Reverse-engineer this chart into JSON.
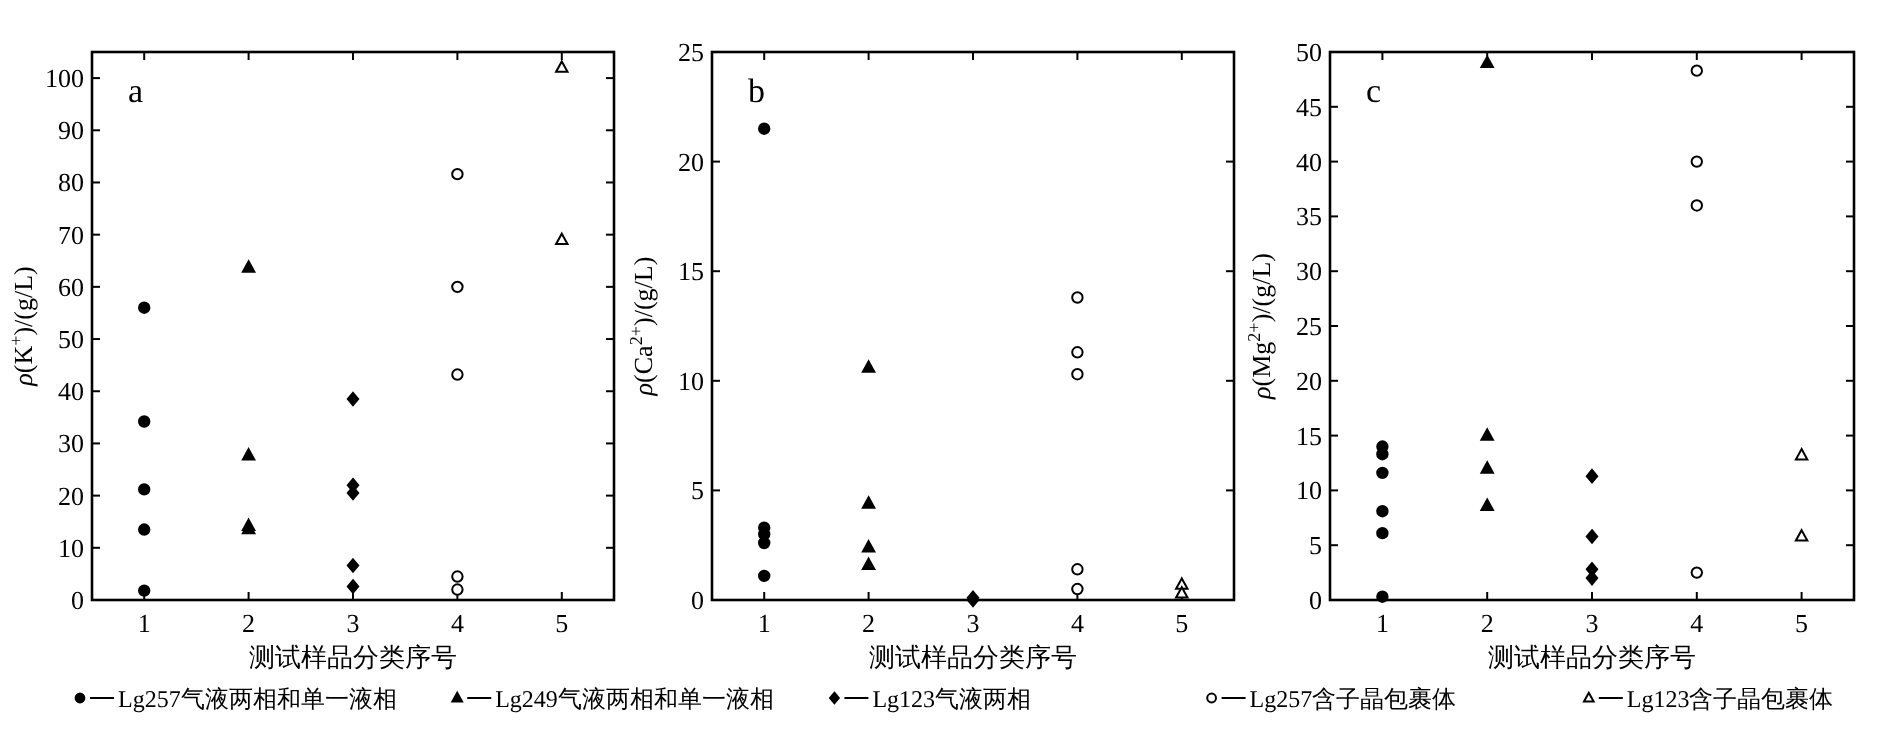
{
  "chart_data": [
    {
      "type": "scatter",
      "xlabel": "测试样品分类序号",
      "ylabel": "*ρ*(K$^{+}$)/(g/L)",
      "annotations": [
        "a"
      ],
      "xlim": [
        0.5,
        5.5
      ],
      "xticks": [
        1,
        2,
        3,
        4,
        5
      ],
      "ylim": [
        0,
        105
      ],
      "yticks": [
        0,
        10,
        20,
        30,
        40,
        50,
        60,
        70,
        80,
        90,
        100
      ],
      "legend": "bottom",
      "series": [
        {
          "name": "Lg257气液两相和单一液相",
          "color": "#000000",
          "marker": "circle",
          "x": [
            1,
            1,
            1,
            1,
            1
          ],
          "values": [
            56,
            34.2,
            21.2,
            13.5,
            1.8
          ]
        },
        {
          "name": "Lg249气液两相和单一液相",
          "color": "#000000",
          "marker": "triangle",
          "x": [
            2,
            2,
            2,
            2
          ],
          "values": [
            63.7,
            27.7,
            14.2,
            13.6
          ]
        },
        {
          "name": "Lg123气液两相",
          "color": "#000000",
          "marker": "diamond",
          "x": [
            3,
            3,
            3,
            3,
            3
          ],
          "values": [
            38.5,
            22,
            20.5,
            6.6,
            2.6
          ]
        },
        {
          "name": "Lg257含子晶包裹体",
          "color": "#000000",
          "marker": "circle",
          "x": [
            4,
            4,
            4,
            4,
            4
          ],
          "values": [
            81.6,
            60,
            43.2,
            4.5,
            2
          ]
        },
        {
          "name": "Lg123含子晶包裹体",
          "color": "#000000",
          "marker": "triangle",
          "x": [
            5,
            5
          ],
          "values": [
            102,
            69
          ]
        }
      ]
    },
    {
      "type": "scatter",
      "xlabel": "测试样品分类序号",
      "ylabel": "*ρ*(Ca$^{2+}$)/(g/L)",
      "annotations": [
        "b"
      ],
      "xlim": [
        0.5,
        5.5
      ],
      "xticks": [
        1,
        2,
        3,
        4,
        5
      ],
      "ylim": [
        0,
        25
      ],
      "yticks": [
        0,
        5,
        10,
        15,
        20,
        25
      ],
      "series": [
        {
          "color": "#000000",
          "marker": "circle",
          "x": [
            1,
            1,
            1,
            1,
            1
          ],
          "values": [
            21.5,
            3.3,
            3.0,
            2.6,
            1.1
          ]
        },
        {
          "color": "#000000",
          "marker": "triangle",
          "x": [
            2,
            2,
            2,
            2
          ],
          "values": [
            10.6,
            4.4,
            2.4,
            1.6
          ]
        },
        {
          "color": "#000000",
          "marker": "diamond",
          "x": [
            3,
            3
          ],
          "values": [
            0.1,
            0
          ]
        },
        {
          "color": "#000000",
          "marker": "circle",
          "x": [
            4,
            4,
            4,
            4,
            4
          ],
          "values": [
            13.8,
            11.3,
            10.3,
            1.4,
            0.5
          ]
        },
        {
          "color": "#000000",
          "marker": "triangle",
          "x": [
            5,
            5
          ],
          "values": [
            0.7,
            0.3
          ]
        }
      ]
    },
    {
      "type": "scatter",
      "xlabel": "测试样品分类序号",
      "ylabel": "*ρ*(Mg$^{2+}$)/(g/L)",
      "annotations": [
        "c"
      ],
      "xlim": [
        0.5,
        5.5
      ],
      "xticks": [
        1,
        2,
        3,
        4,
        5
      ],
      "ylim": [
        0,
        50
      ],
      "yticks": [
        0,
        5,
        10,
        15,
        20,
        25,
        30,
        35,
        40,
        45,
        50
      ],
      "series": [
        {
          "color": "#000000",
          "marker": "circle",
          "x": [
            1,
            1,
            1,
            1,
            1,
            1
          ],
          "values": [
            14,
            13.3,
            11.6,
            8.1,
            6.1,
            0.3
          ]
        },
        {
          "color": "#000000",
          "marker": "triangle",
          "x": [
            2,
            2,
            2,
            2
          ],
          "values": [
            49,
            15,
            12,
            8.6
          ]
        },
        {
          "color": "#000000",
          "marker": "diamond",
          "x": [
            3,
            3,
            3,
            3
          ],
          "values": [
            11.3,
            5.8,
            2.8,
            2
          ]
        },
        {
          "color": "#000000",
          "marker": "circle",
          "x": [
            4,
            4,
            4,
            4
          ],
          "values": [
            48.3,
            40,
            36,
            2.5
          ]
        },
        {
          "color": "#000000",
          "marker": "triangle",
          "x": [
            5,
            5
          ],
          "values": [
            13.2,
            5.8
          ]
        }
      ]
    }
  ]
}
